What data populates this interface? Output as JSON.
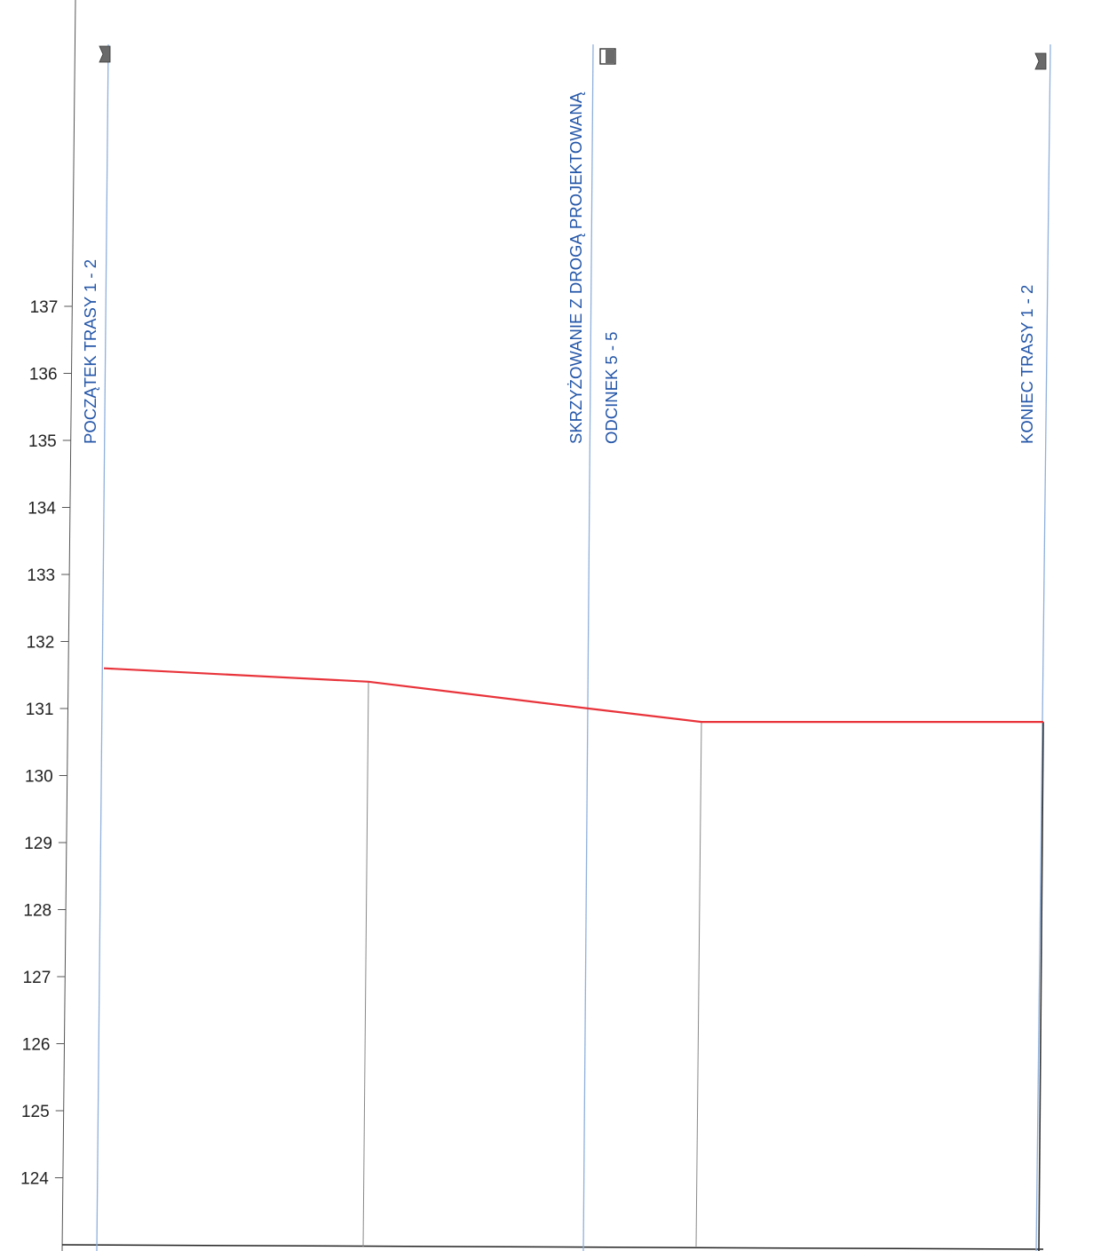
{
  "colors": {
    "profile": "#e8333a",
    "station_line": "#8fb0dc",
    "station_text": "#2456a8",
    "axis": "#555555",
    "grid": "#888888",
    "marker": "#6a6a6a"
  },
  "chart_data": {
    "type": "line",
    "title": "",
    "xlabel": "",
    "ylabel": "",
    "ylim": [
      123,
      138.5
    ],
    "yticks": [
      137,
      136,
      135,
      134,
      133,
      132,
      131,
      130,
      129,
      128,
      127,
      126,
      125,
      124
    ],
    "series": [
      {
        "values": [
          131.6,
          131.4,
          131.0,
          130.8,
          130.8
        ]
      }
    ],
    "stations": [
      {
        "labels": [
          "POCZĄTEK TRASY 1  -  2"
        ],
        "marker": "flag",
        "highlight": true
      },
      {
        "labels": [
          "SKRZYŻOWANIE Z DROGĄ PROJEKTOWANĄ",
          "ODCINEK 5  -  5"
        ],
        "marker": "square",
        "highlight": true
      },
      {
        "labels": [
          "KONIEC TRASY 1  -  2"
        ],
        "marker": "flag",
        "highlight": true
      }
    ]
  }
}
